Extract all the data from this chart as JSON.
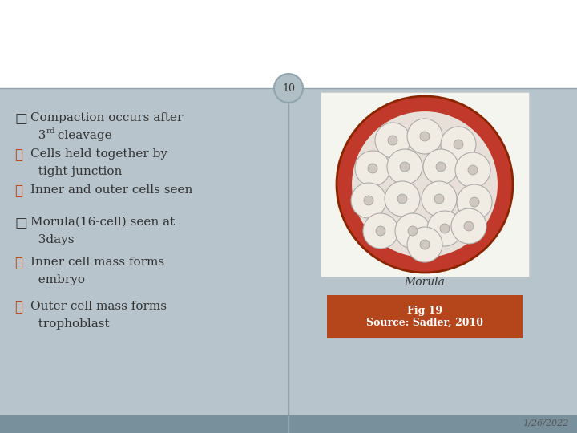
{
  "background_top": "#ffffff",
  "background_bottom": "#b0bec5",
  "slide_bg": "#b8c4cc",
  "header_line_color": "#90a4ae",
  "page_number": "10",
  "page_circle_color": "#b0bec5",
  "page_circle_edge": "#90a4ae",
  "bullet_lines": [
    {
      "symbol": "□",
      "text": "Compaction occurs after\n  3",
      "superscript": "rd",
      "text2": " cleavage",
      "color": "#333333",
      "symbol_color": "#333333"
    },
    {
      "symbol": "✓",
      "text": "Cells held together by\n  tight junction",
      "color": "#333333",
      "symbol_color": "#b5451b"
    },
    {
      "symbol": "✓",
      "text": "Inner and outer cells seen",
      "color": "#333333",
      "symbol_color": "#b5451b"
    },
    {
      "symbol": "□",
      "text": "Morula(16-cell) seen at\n  3days",
      "color": "#333333",
      "symbol_color": "#333333"
    },
    {
      "symbol": "✓",
      "text": "Inner cell mass forms\n  embryo",
      "color": "#333333",
      "symbol_color": "#b5451b"
    },
    {
      "symbol": "✓",
      "text": "Outer cell mass forms\n  trophoblast",
      "color": "#333333",
      "symbol_color": "#b5451b"
    }
  ],
  "fig_label": "Fig 19\nSource: Sadler, 2010",
  "fig_label_bg": "#b5451b",
  "fig_label_color": "#ffffff",
  "date_text": "1/26/2022",
  "date_color": "#555555",
  "morula_label": "Morula"
}
